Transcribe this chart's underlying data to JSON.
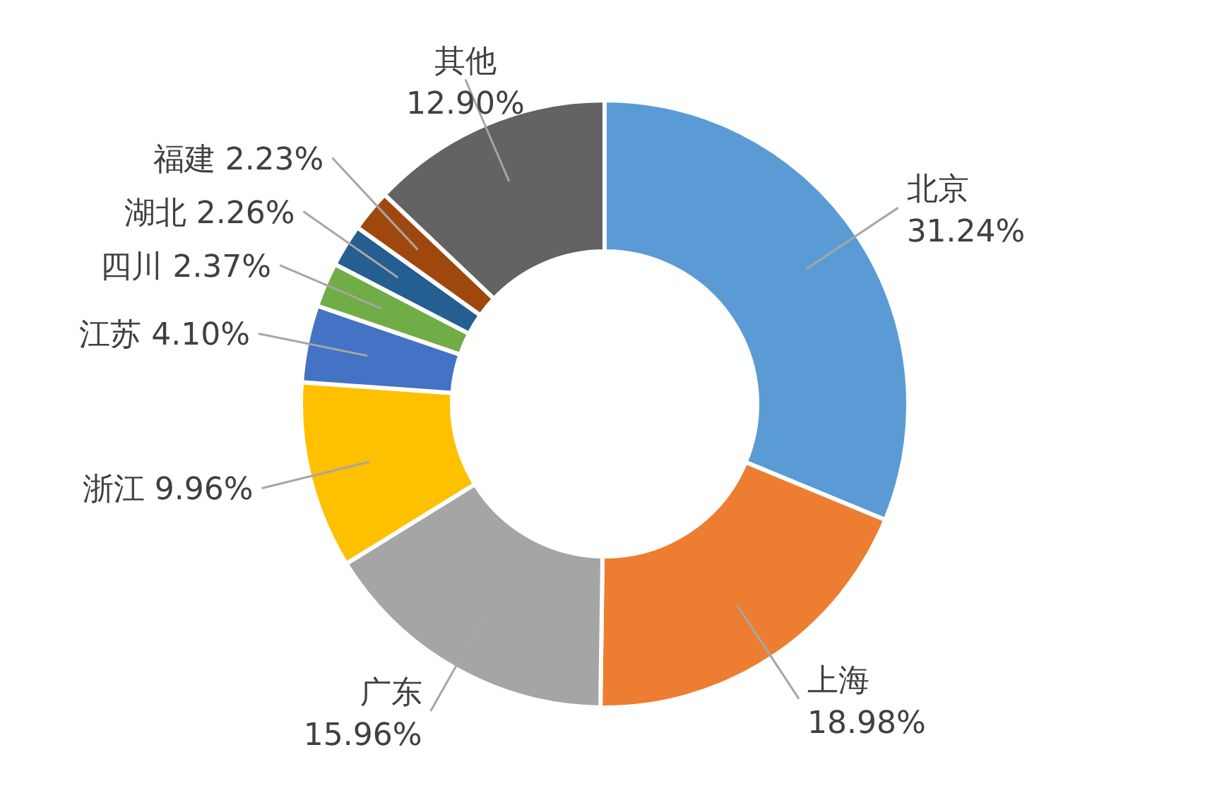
{
  "chart_data": {
    "type": "donut",
    "categories": [
      "北京",
      "上海",
      "广东",
      "浙江",
      "江苏",
      "四川",
      "湖北",
      "福建",
      "其他"
    ],
    "values": [
      31.24,
      18.98,
      15.96,
      9.96,
      4.1,
      2.37,
      2.26,
      2.23,
      12.9
    ],
    "value_labels": [
      "31.24%",
      "18.98%",
      "15.96%",
      "9.96%",
      "4.10%",
      "2.37%",
      "2.26%",
      "2.23%",
      "12.90%"
    ],
    "colors": [
      "#5b9bd5",
      "#ed7d31",
      "#a5a5a5",
      "#ffc000",
      "#4472c4",
      "#70ad47",
      "#255e91",
      "#9e480e",
      "#636363"
    ]
  }
}
